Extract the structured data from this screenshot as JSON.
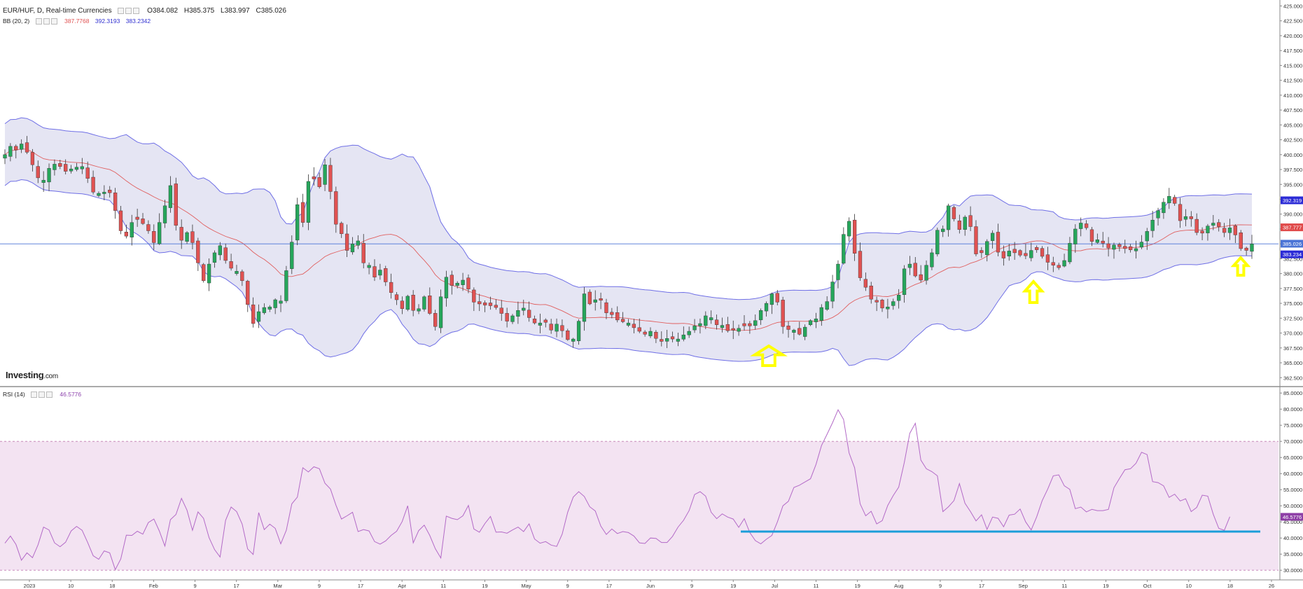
{
  "header": {
    "symbol": "EUR/HUF, D, Real-time Currencies",
    "open": "O384.082",
    "high": "H385.375",
    "low": "L383.997",
    "close": "C385.026",
    "bb_label": "BB (20, 2)",
    "bb_middle": "387.7768",
    "bb_upper": "392.3193",
    "bb_lower": "383.2342",
    "rsi_label": "RSI (14)",
    "rsi_value": "46.5776"
  },
  "logo": {
    "brand": "Investing",
    "suffix": ".com"
  },
  "colors": {
    "up": "#26a65b",
    "down": "#e05252",
    "band_fill": "#e5e5f3",
    "band_line": "#6f6fe6",
    "basis": "#e06060",
    "rsi_line": "#b36ac7",
    "rsi_fill": "#f3e3f2",
    "support_line": "#1a9ed9",
    "arrow": "#ffff00",
    "price_line": "#4a74d6"
  },
  "chart_data": [
    {
      "type": "candlestick",
      "title": "EUR/HUF, D, Real-time Currencies",
      "y_ticks": [
        "425.000",
        "422.500",
        "420.000",
        "417.500",
        "415.000",
        "412.500",
        "410.000",
        "407.500",
        "405.000",
        "402.500",
        "400.000",
        "397.500",
        "395.000",
        "392.500",
        "390.000",
        "387.500",
        "385.000",
        "382.500",
        "380.000",
        "377.500",
        "375.000",
        "372.500",
        "370.000",
        "367.500",
        "365.000",
        "362.500"
      ],
      "ylim": [
        361,
        426
      ],
      "x_ticks": [
        "2023",
        "10",
        "18",
        "Feb",
        "9",
        "17",
        "Mar",
        "9",
        "17",
        "Apr",
        "11",
        "19",
        "May",
        "9",
        "17",
        "Jun",
        "9",
        "19",
        "Jul",
        "11",
        "19",
        "Aug",
        "9",
        "17",
        "Sep",
        "11",
        "19",
        "Oct",
        "10",
        "18",
        "26"
      ],
      "price_labels": {
        "upper": "392.319",
        "middle": "387.777",
        "last": "385.026",
        "lower": "383.234"
      },
      "close": [
        400.0,
        401.4,
        400.8,
        401.8,
        400.4,
        398.3,
        396.1,
        395.7,
        397.7,
        398.4,
        398.0,
        397.2,
        397.6,
        397.9,
        398.0,
        396.0,
        393.7,
        393.5,
        393.7,
        393.6,
        390.6,
        387.2,
        386.3,
        388.6,
        389.1,
        388.4,
        387.2,
        385.2,
        388.6,
        391.4,
        394.8,
        388.1,
        385.6,
        386.9,
        385.2,
        381.8,
        378.8,
        381.6,
        383.5,
        384.7,
        382.2,
        380.9,
        380.4,
        378.8,
        374.8,
        371.6,
        373.6,
        374.3,
        374.4,
        375.6,
        375.4,
        380.5,
        385.3,
        391.6,
        388.6,
        395.5,
        395.9,
        394.6,
        398.3,
        393.8,
        388.3,
        386.7,
        383.9,
        385.0,
        385.5,
        381.8,
        381.4,
        379.4,
        380.6,
        378.6,
        376.8,
        375.6,
        374.1,
        376.2,
        373.8,
        374.1,
        376.1,
        373.3,
        371.1,
        376.1,
        379.4,
        378.0,
        378.4,
        378.9,
        377.4,
        375.2,
        374.9,
        374.7,
        374.6,
        374.3,
        373.3,
        372.0,
        372.9,
        373.8,
        374.2,
        372.6,
        371.7,
        371.7,
        371.8,
        370.5,
        371.5,
        370.4,
        368.9,
        369.0,
        372.0,
        376.6,
        374.9,
        375.6,
        375.5,
        373.4,
        373.1,
        372.2,
        371.9,
        371.7,
        370.9,
        370.3,
        369.8,
        370.3,
        369.1,
        368.6,
        369.1,
        369.0,
        369.0,
        369.7,
        370.3,
        371.2,
        371.6,
        372.9,
        372.6,
        371.4,
        371.3,
        370.4,
        370.5,
        370.8,
        371.2,
        371.2,
        372.1,
        373.8,
        375.0,
        376.6,
        375.2,
        371.1,
        370.6,
        370.5,
        369.8,
        371.0,
        372.1,
        372.4,
        374.3,
        375.3,
        378.6,
        381.6,
        386.6,
        388.8,
        383.4,
        379.3,
        377.7,
        375.7,
        375.2,
        374.2,
        374.4,
        375.3,
        376.4,
        380.8,
        381.6,
        379.6,
        378.9,
        381.4,
        383.5,
        387.3,
        387.5,
        391.4,
        389.2,
        387.4,
        389.5,
        387.9,
        383.3,
        383.5,
        385.4,
        386.8,
        383.6,
        382.6,
        383.8,
        383.5,
        383.1,
        383.0,
        383.9,
        384.0,
        382.9,
        381.9,
        381.4,
        381.0,
        382.2,
        385.1,
        387.5,
        388.5,
        387.7,
        385.4,
        385.7,
        385.1,
        384.3,
        384.8,
        384.5,
        384.2,
        384.0,
        384.2,
        385.3,
        387.1,
        389.0,
        390.6,
        392.0,
        393.0,
        391.8,
        388.9,
        389.6,
        389.2,
        386.9,
        386.8,
        388.0,
        388.5,
        387.9,
        386.9,
        387.7,
        386.5,
        384.2,
        383.9,
        385.0
      ]
    },
    {
      "type": "line",
      "title": "RSI (14)",
      "y_ticks": [
        "85.0000",
        "80.0000",
        "75.0000",
        "70.0000",
        "65.0000",
        "60.0000",
        "55.0000",
        "50.0000",
        "45.0000",
        "40.0000",
        "35.0000",
        "30.0000"
      ],
      "ylim": [
        27,
        87
      ],
      "overbought": 70,
      "oversold": 30,
      "last_label": "46.5776",
      "support_level": 42.0,
      "values": [
        38.4,
        40.6,
        38.0,
        33.1,
        35.4,
        33.9,
        37.9,
        43.4,
        42.5,
        38.5,
        37.3,
        38.7,
        42.2,
        43.6,
        42.4,
        38.6,
        34.5,
        33.4,
        36.0,
        35.4,
        30.2,
        33.5,
        40.9,
        40.8,
        42.1,
        41.2,
        44.8,
        45.9,
        42.1,
        37.5,
        45.7,
        47.3,
        52.3,
        48.6,
        42.4,
        48.1,
        46.1,
        40.1,
        36.4,
        34.1,
        45.5,
        49.6,
        48.2,
        44.3,
        36.6,
        34.9,
        47.9,
        42.6,
        44.3,
        43.0,
        38.2,
        42.4,
        50.6,
        52.7,
        61.8,
        60.5,
        62.1,
        61.5,
        57.0,
        55.2,
        50.2,
        45.9,
        46.9,
        48.0,
        42.0,
        42.6,
        42.2,
        38.9,
        38.1,
        39.1,
        40.8,
        42.1,
        45.1,
        50.0,
        38.5,
        42.3,
        44.0,
        40.8,
        36.7,
        33.8,
        46.8,
        46.1,
        45.7,
        46.9,
        50.1,
        42.8,
        41.8,
        44.5,
        46.7,
        41.8,
        41.9,
        41.5,
        42.5,
        43.4,
        42.0,
        44.4,
        39.7,
        38.4,
        38.9,
        37.8,
        37.4,
        41.2,
        48.0,
        52.7,
        54.4,
        52.9,
        49.7,
        48.4,
        43.7,
        41.1,
        42.8,
        41.4,
        42.0,
        41.7,
        40.6,
        38.5,
        38.3,
        40.0,
        39.9,
        38.6,
        38.6,
        40.5,
        43.4,
        45.5,
        48.5,
        53.5,
        54.4,
        53.0,
        48.0,
        46.0,
        47.5,
        46.5,
        45.9,
        43.3,
        46.0,
        41.7,
        39.2,
        38.2,
        39.6,
        40.8,
        45.0,
        50.0,
        51.4,
        55.7,
        56.4,
        57.4,
        58.4,
        62.8,
        68.7,
        72.2,
        75.8,
        79.8,
        76.8,
        66.4,
        61.8,
        50.6,
        46.9,
        48.3,
        44.4,
        45.4,
        50.1,
        53.2,
        55.8,
        63.4,
        72.5,
        75.6,
        64.2,
        61.5,
        60.6,
        59.3,
        48.2,
        49.7,
        51.6,
        56.9,
        50.8,
        48.2,
        45.3,
        47.2,
        42.7,
        46.5,
        46.1,
        43.5,
        47.1,
        47.4,
        49.0,
        45.0,
        42.5,
        46.6,
        51.6,
        55.2,
        59.3,
        59.6,
        56.2,
        55.1,
        49.1,
        49.6,
        48.1,
        48.9,
        48.5,
        48.5,
        48.9,
        55.6,
        58.5,
        61.2,
        61.5,
        63.2,
        66.6,
        65.9,
        57.5,
        57.2,
        56.2,
        52.6,
        53.6,
        51.5,
        52.2,
        48.2,
        49.5,
        53.3,
        53.0,
        47.4,
        43.0,
        42.4,
        46.6
      ]
    }
  ]
}
